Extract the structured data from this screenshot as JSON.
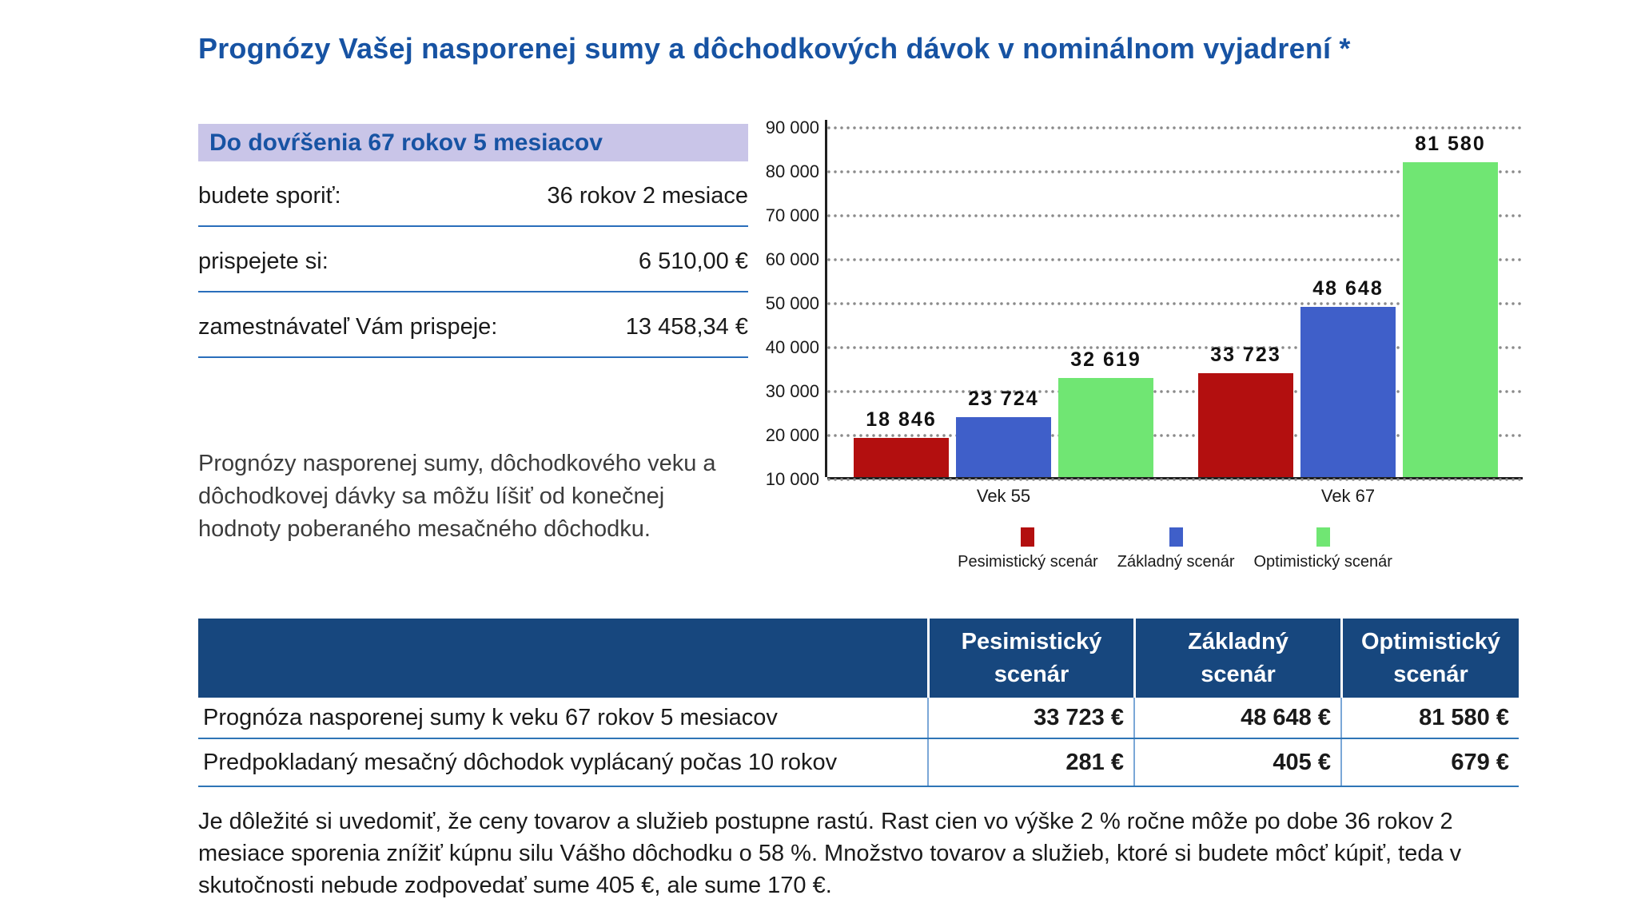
{
  "page": {
    "title": "Prognózy Vašej nasporenej sumy a dôchodkových dávok v nominálnom vyjadrení *"
  },
  "summary": {
    "heading": "Do dovŕšenia 67 rokov 5 mesiacov",
    "rows": [
      {
        "label": "budete sporiť:",
        "value": "36 rokov 2 mesiace"
      },
      {
        "label": "prispejete si:",
        "value": "6 510,00 €"
      },
      {
        "label": "zamestnávateľ Vám prispeje:",
        "value": "13 458,34 €"
      }
    ],
    "note_lines": [
      "Prognózy nasporenej sumy, dôchodkového veku a",
      "dôchodkovej dávky sa môžu líšiť od konečnej",
      "hodnoty poberaného mesačného dôchodku."
    ]
  },
  "chart_data": {
    "type": "bar",
    "categories": [
      "Vek 55",
      "Vek 67"
    ],
    "series": [
      {
        "name": "Pesimistický scenár",
        "color": "#b30f0f",
        "values": [
          18846,
          33723
        ],
        "labels": [
          "18 846",
          "33 723"
        ]
      },
      {
        "name": "Základný scenár",
        "color": "#3f5fc9",
        "values": [
          23724,
          48648
        ],
        "labels": [
          "23 724",
          "48 648"
        ]
      },
      {
        "name": "Optimistický scenár",
        "color": "#70e673",
        "values": [
          32619,
          81580
        ],
        "labels": [
          "32 619",
          "81 580"
        ]
      }
    ],
    "title": "",
    "xlabel": "",
    "ylabel": "",
    "ylim": [
      10000,
      90000
    ],
    "ytick_values": [
      10000,
      20000,
      30000,
      40000,
      50000,
      60000,
      70000,
      80000,
      90000
    ],
    "ytick_labels": [
      "10 000",
      "20 000",
      "30 000",
      "40 000",
      "50 000",
      "60 000",
      "70 000",
      "80 000",
      "90 000"
    ],
    "grid": "horizontal-dotted",
    "legend_position": "bottom"
  },
  "table": {
    "columns": [
      {
        "line1": "Pesimistický",
        "line2": "scenár"
      },
      {
        "line1": "Základný",
        "line2": "scenár"
      },
      {
        "line1": "Optimistický",
        "line2": "scenár"
      }
    ],
    "rows": [
      {
        "label": "Prognóza nasporenej sumy k veku 67 rokov 5 mesiacov",
        "values": [
          "33 723 €",
          "48 648 €",
          "81 580 €"
        ]
      },
      {
        "label": "Predpokladaný mesačný dôchodok vyplácaný počas 10 rokov",
        "values": [
          "281 €",
          "405 €",
          "679 €"
        ]
      }
    ]
  },
  "footer": {
    "lines": [
      "Je dôležité si uvedomiť, že ceny tovarov a služieb postupne rastú. Rast cien vo výške 2 % ročne môže po dobe 36 rokov 2",
      "mesiace sporenia znížiť kúpnu silu Vášho dôchodku o 58 %. Množstvo tovarov a služieb, ktoré si budete môcť kúpiť, teda v",
      "skutočnosti nebude zodpovedať sume 405 €, ale sume 170 €."
    ]
  },
  "colors": {
    "accent_blue": "#1753a3",
    "heading_bg": "#c9c5e8",
    "rule_blue": "#2a6ebb",
    "table_header_bg": "#17477e",
    "pessimistic": "#b30f0f",
    "base": "#3f5fc9",
    "optimistic": "#70e673"
  }
}
